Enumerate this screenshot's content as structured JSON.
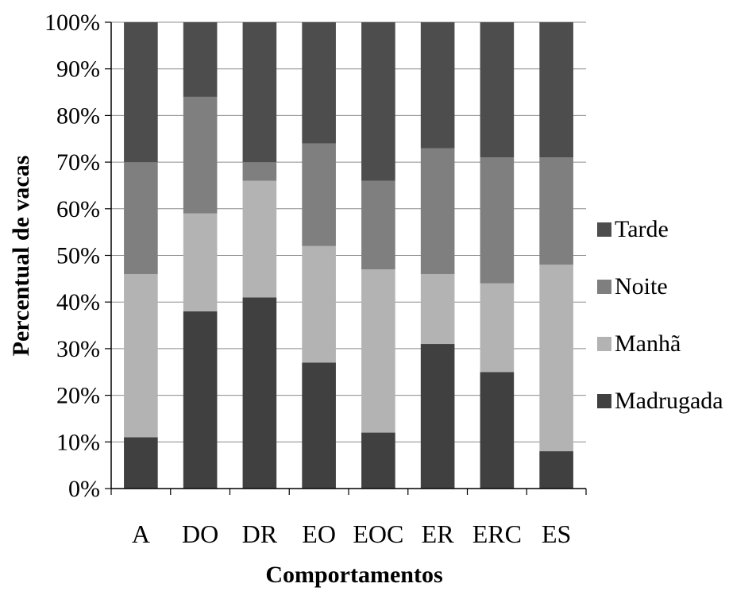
{
  "chart_data": {
    "type": "bar",
    "stacked": "percent",
    "categories": [
      "A",
      "DO",
      "DR",
      "EO",
      "EOC",
      "ER",
      "ERC",
      "ES"
    ],
    "series": [
      {
        "name": "Madrugada",
        "color": "#404040",
        "values": [
          11,
          38,
          41,
          27,
          12,
          31,
          25,
          8
        ]
      },
      {
        "name": "Manhã",
        "color": "#b3b3b3",
        "values": [
          35,
          21,
          25,
          25,
          35,
          15,
          19,
          40
        ]
      },
      {
        "name": "Noite",
        "color": "#7f7f7f",
        "values": [
          24,
          25,
          4,
          22,
          19,
          27,
          27,
          23
        ]
      },
      {
        "name": "Tarde",
        "color": "#4d4d4d",
        "values": [
          30,
          16,
          30,
          26,
          34,
          27,
          29,
          29
        ]
      }
    ],
    "ylim": [
      0,
      100
    ],
    "yticks": [
      "0%",
      "10%",
      "20%",
      "30%",
      "40%",
      "50%",
      "60%",
      "70%",
      "80%",
      "90%",
      "100%"
    ],
    "xlabel": "Comportamentos",
    "ylabel": "Percentual de vacas",
    "legend": {
      "position": "right",
      "order": [
        "Tarde",
        "Noite",
        "Manhã",
        "Madrugada"
      ]
    },
    "grid": true
  }
}
